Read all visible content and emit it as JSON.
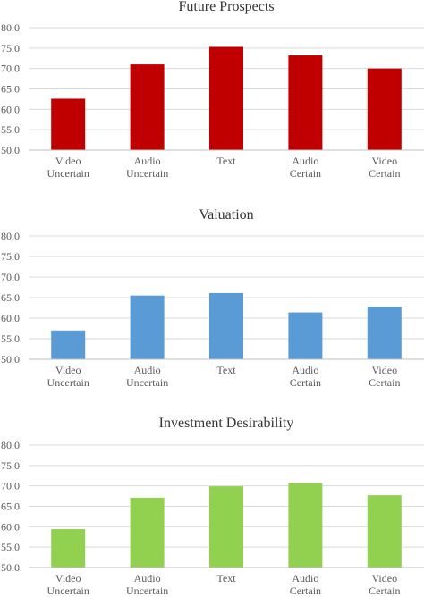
{
  "chart_data": [
    {
      "type": "bar",
      "title": "Future Prospects",
      "categories": [
        [
          "Video",
          "Uncertain"
        ],
        [
          "Audio",
          "Uncertain"
        ],
        [
          "Text"
        ],
        [
          "Audio",
          "Certain"
        ],
        [
          "Video",
          "Certain"
        ]
      ],
      "values": [
        62.6,
        71.0,
        75.3,
        73.2,
        70.0
      ],
      "color": "#c00000",
      "ylim": [
        50,
        80
      ],
      "yticks": [
        "50.0",
        "55.0",
        "60.0",
        "65.0",
        "70.0",
        "75.0",
        "80.0"
      ],
      "grid": true
    },
    {
      "type": "bar",
      "title": "Valuation",
      "categories": [
        [
          "Video",
          "Uncertain"
        ],
        [
          "Audio",
          "Uncertain"
        ],
        [
          "Text"
        ],
        [
          "Audio",
          "Certain"
        ],
        [
          "Video",
          "Certain"
        ]
      ],
      "values": [
        57.0,
        65.5,
        66.1,
        61.4,
        62.8
      ],
      "color": "#5b9bd5",
      "ylim": [
        50,
        80
      ],
      "yticks": [
        "50.0",
        "55.0",
        "60.0",
        "65.0",
        "70.0",
        "75.0",
        "80.0"
      ],
      "grid": true
    },
    {
      "type": "bar",
      "title": "Investment Desirability",
      "categories": [
        [
          "Video",
          "Uncertain"
        ],
        [
          "Audio",
          "Uncertain"
        ],
        [
          "Text"
        ],
        [
          "Audio",
          "Certain"
        ],
        [
          "Video",
          "Certain"
        ]
      ],
      "values": [
        59.4,
        67.1,
        69.9,
        70.7,
        67.7
      ],
      "color": "#92d050",
      "ylim": [
        50,
        80
      ],
      "yticks": [
        "50.0",
        "55.0",
        "60.0",
        "65.0",
        "70.0",
        "75.0",
        "80.0"
      ],
      "grid": true
    }
  ]
}
